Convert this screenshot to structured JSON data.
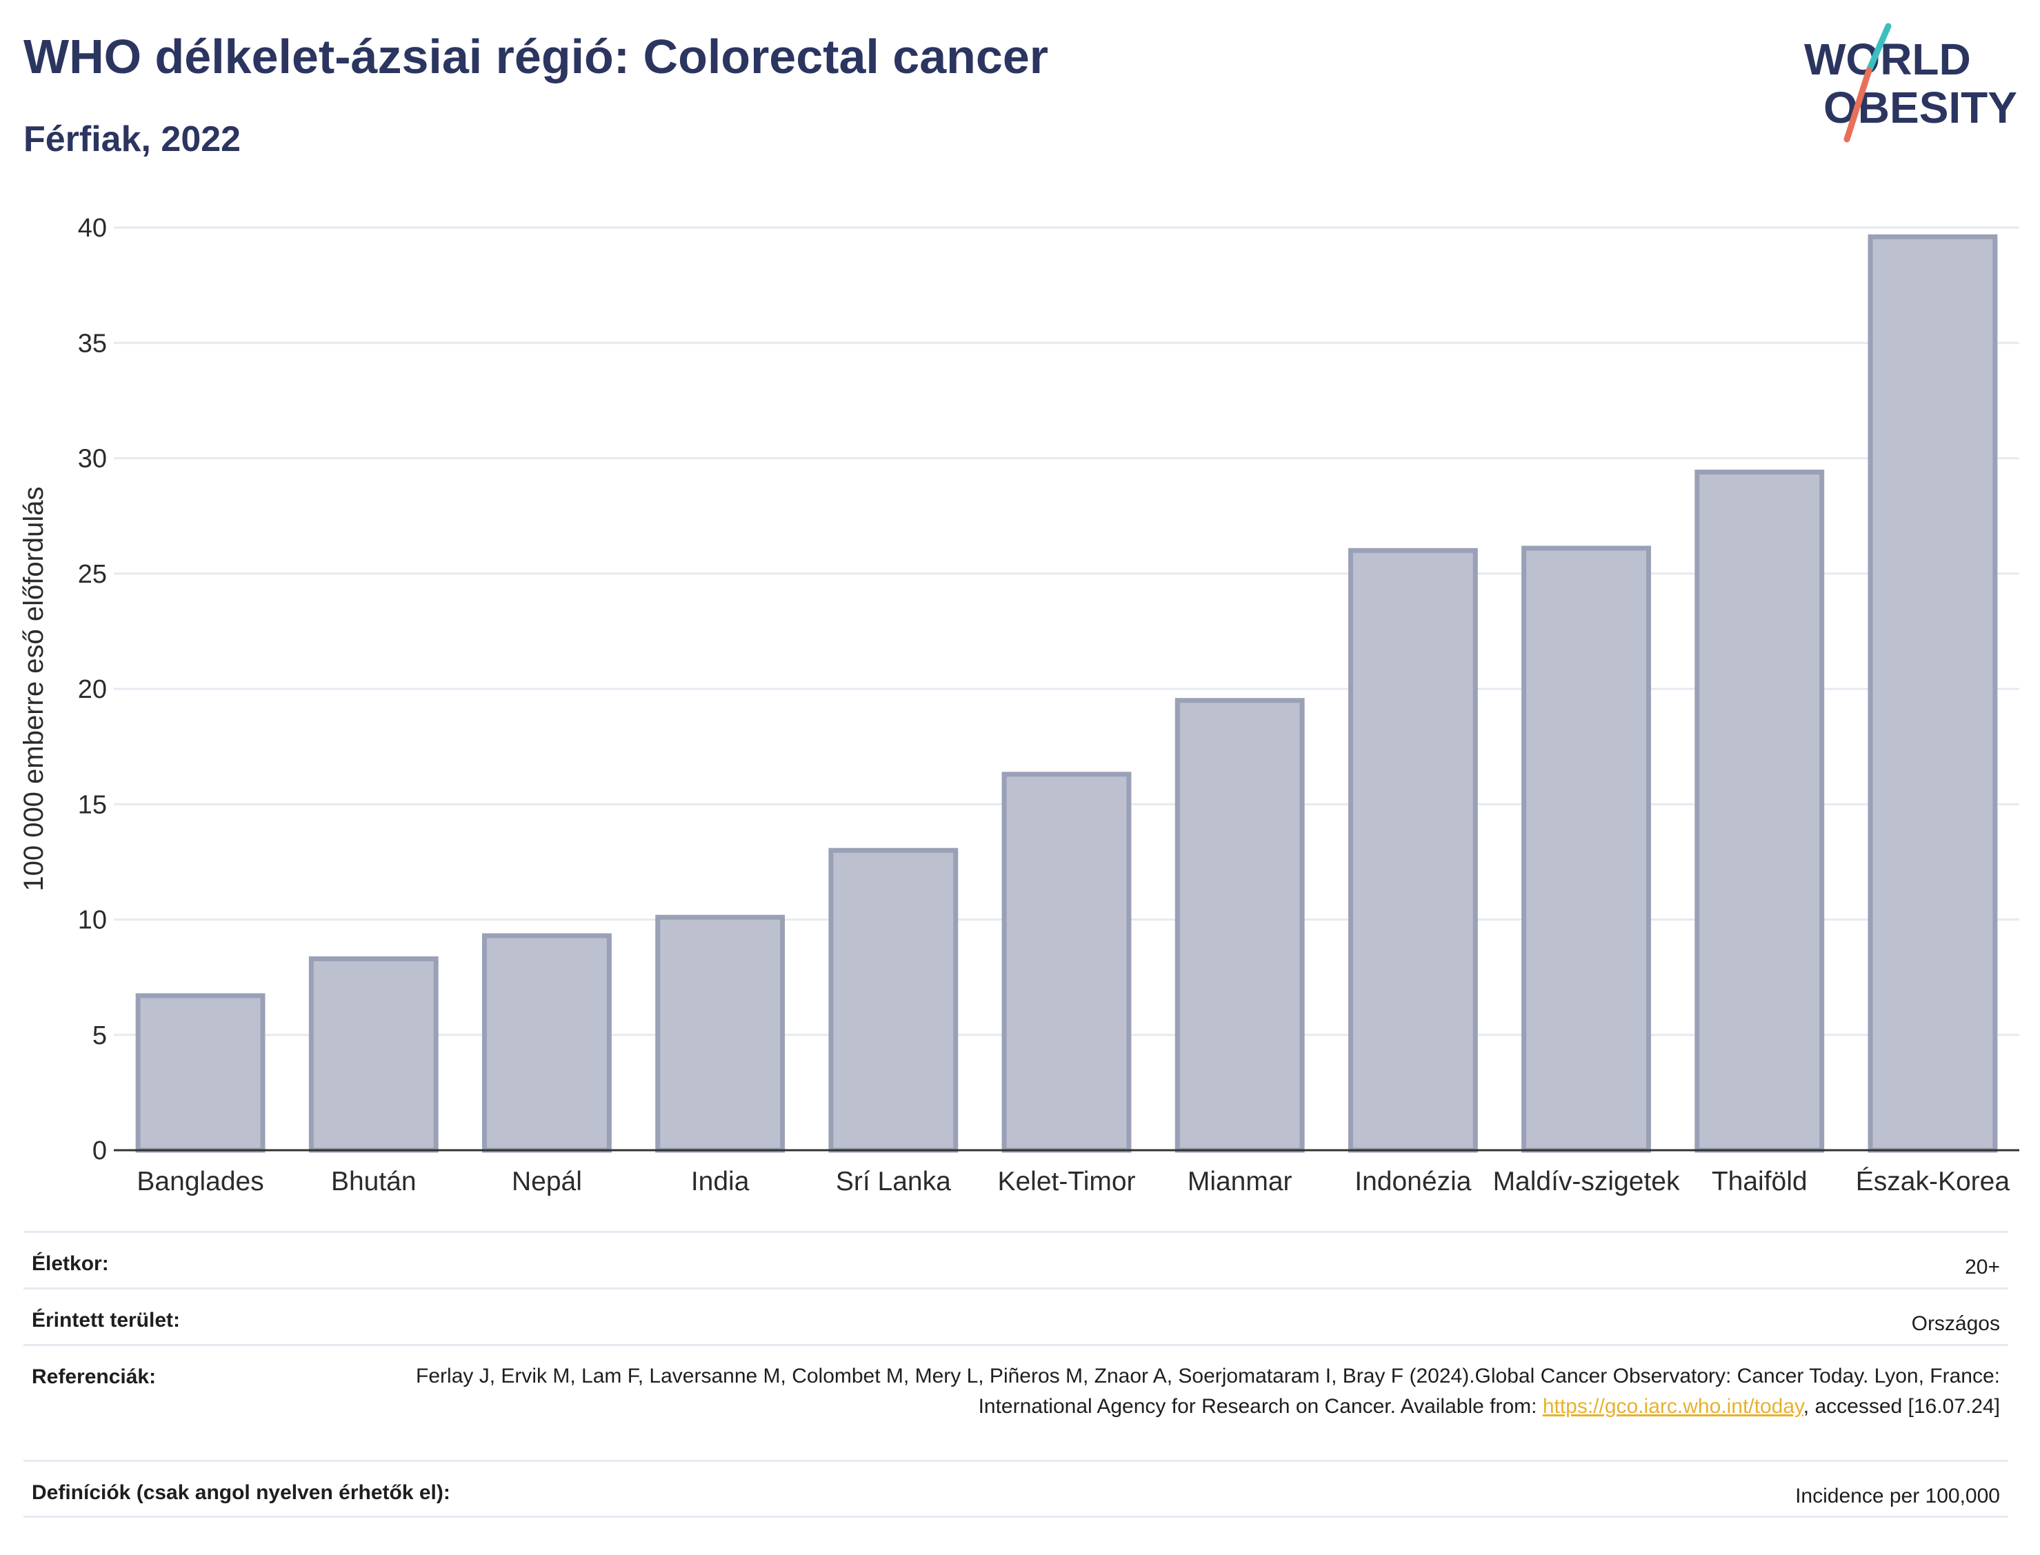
{
  "header": {
    "title": "WHO délkelet-ázsiai régió: Colorectal cancer",
    "subtitle": "Férfiak, 2022"
  },
  "logo": {
    "line1": "WORLD",
    "line2": "OBESITY",
    "slash_color_top": "#3cbfc0",
    "slash_color_bottom": "#e8705a"
  },
  "chart_data": {
    "type": "bar",
    "categories": [
      "Banglades",
      "Bhután",
      "Nepál",
      "India",
      "Srí Lanka",
      "Kelet-Timor",
      "Mianmar",
      "Indonézia",
      "Maldív-szigetek",
      "Thaiföld",
      "Észak-Korea"
    ],
    "values": [
      6.7,
      8.3,
      9.3,
      10.1,
      13.0,
      16.3,
      19.5,
      26.0,
      26.1,
      29.4,
      39.6
    ],
    "ylabel": "100 000 emberre eső előfordulás",
    "xlabel": "",
    "ylim": [
      0,
      40
    ],
    "yticks": [
      0,
      5,
      10,
      15,
      20,
      25,
      30,
      35,
      40
    ],
    "grid": true,
    "bar_fill": "#bcc0cf",
    "bar_stroke": "#9aa0b6"
  },
  "meta": {
    "age_label": "Életkor:",
    "age_value": "20+",
    "area_label": "Érintett terület:",
    "area_value": "Országos",
    "ref_label": "Referenciák:",
    "ref_text_1": "Ferlay J, Ervik M, Lam F, Laversanne M, Colombet M, Mery L, Piñeros M, Znaor A, Soerjomataram I, Bray F (2024).Global Cancer Observatory: Cancer Today. Lyon, France: International Agency for Research on Cancer. Available from: ",
    "ref_link": "https://gco.iarc.who.int/today",
    "ref_text_2": ", accessed [16.07.24]",
    "def_label": "Definíciók (csak angol nyelven érhetők el):",
    "def_value": "Incidence per 100,000"
  }
}
